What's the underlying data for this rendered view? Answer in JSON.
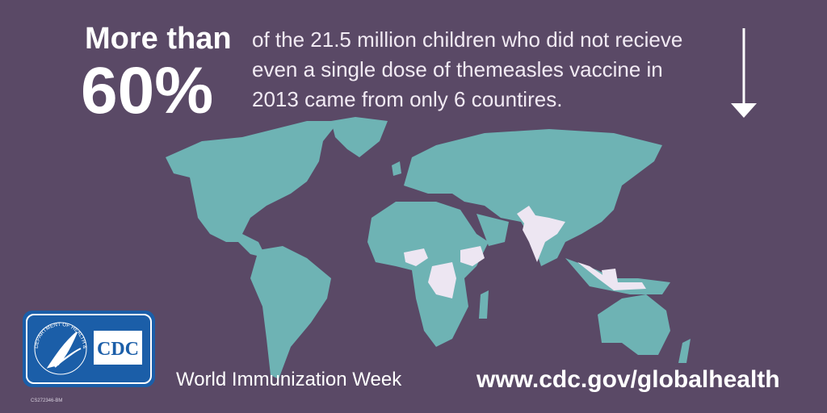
{
  "headline": {
    "lead": "More than",
    "figure": "60%",
    "lines": [
      "of the 21.5 million children who did not recieve",
      "even a single dose of  themeasles vaccine in",
      "2013 came from only 6 countires."
    ]
  },
  "logo": {
    "seal": "DEPARTMENT OF HEALTH & HUMAN SERVICES USA",
    "text": "CDC"
  },
  "footer": {
    "campaign": "World Immunization Week",
    "url": "www.cdc.gov/globalhealth",
    "code": "CS272346-BM"
  }
}
